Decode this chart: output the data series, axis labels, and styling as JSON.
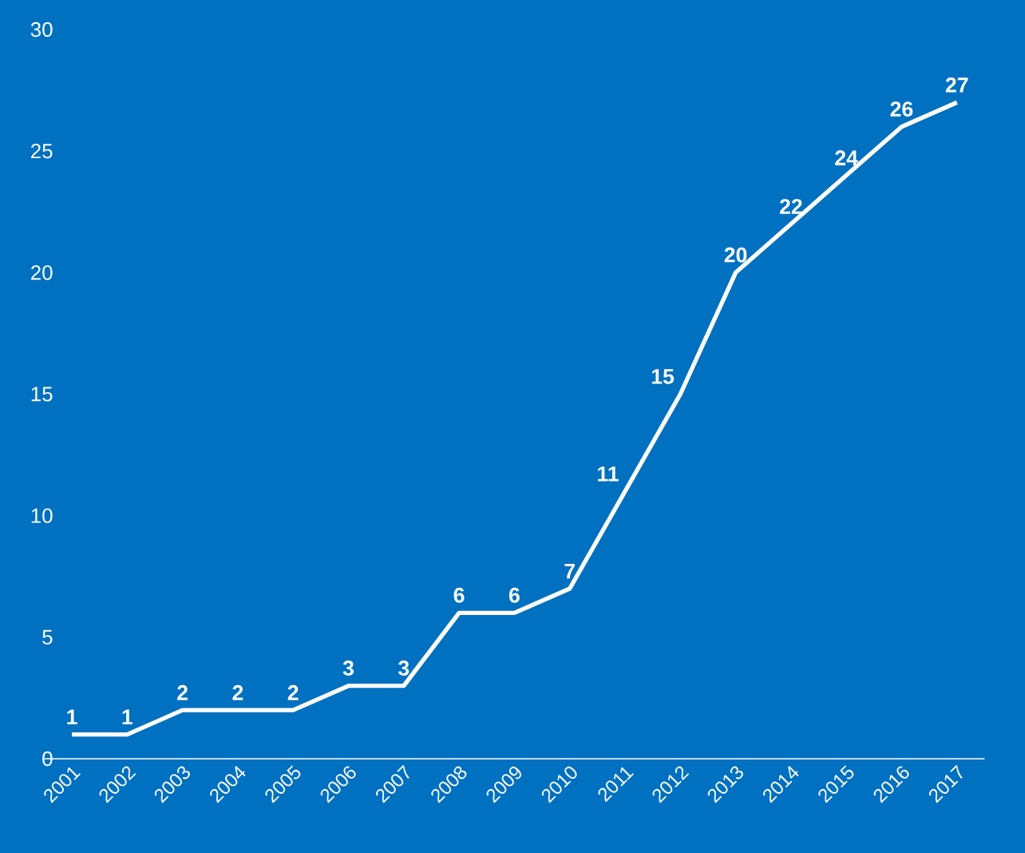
{
  "chart_data": {
    "type": "line",
    "categories": [
      "2001",
      "2002",
      "2003",
      "2004",
      "2005",
      "2006",
      "2007",
      "2008",
      "2009",
      "2010",
      "2011",
      "2012",
      "2013",
      "2014",
      "2015",
      "2016",
      "2017"
    ],
    "values": [
      1,
      1,
      2,
      2,
      2,
      3,
      3,
      6,
      6,
      7,
      11,
      15,
      20,
      22,
      24,
      26,
      27
    ],
    "color": "#ffffff",
    "ylim": [
      0,
      30
    ],
    "yticks": [
      0,
      5,
      10,
      15,
      20,
      25,
      30
    ],
    "data_labels": true,
    "grid": false,
    "marker": "none",
    "line_style": "solid"
  }
}
